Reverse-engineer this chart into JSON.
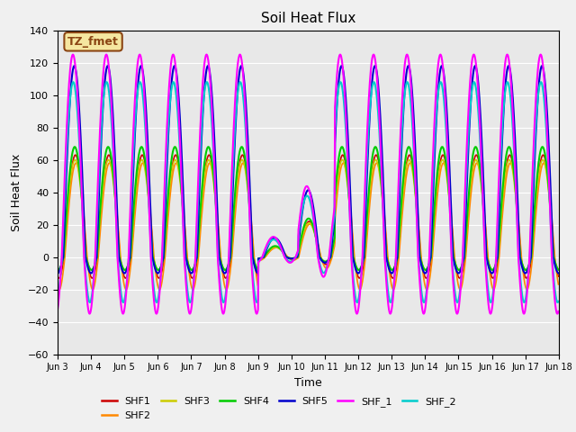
{
  "title": "Soil Heat Flux",
  "xlabel": "Time",
  "ylabel": "Soil Heat Flux",
  "ylim": [
    -60,
    140
  ],
  "xlim_days": [
    3,
    18
  ],
  "background_color": "#e8e8e8",
  "fig_background": "#f0f0f0",
  "annotation_label": "TZ_fmet",
  "annotation_bg": "#f5e6a0",
  "annotation_border": "#8b4513",
  "series": {
    "SHF1": {
      "color": "#cc0000",
      "lw": 1.2
    },
    "SHF2": {
      "color": "#ff8800",
      "lw": 1.2
    },
    "SHF3": {
      "color": "#cccc00",
      "lw": 1.2
    },
    "SHF4": {
      "color": "#00cc00",
      "lw": 1.5
    },
    "SHF5": {
      "color": "#0000cc",
      "lw": 1.5
    },
    "SHF_1": {
      "color": "#ff00ff",
      "lw": 1.5
    },
    "SHF_2": {
      "color": "#00cccc",
      "lw": 1.5
    }
  },
  "ytick_vals": [
    -60,
    -40,
    -20,
    0,
    20,
    40,
    60,
    80,
    100,
    120,
    140
  ],
  "xtick_positions": [
    3,
    4,
    5,
    6,
    7,
    8,
    9,
    10,
    11,
    12,
    13,
    14,
    15,
    16,
    17,
    18
  ],
  "xtick_labels": [
    "Jun 3",
    "Jun 4",
    "Jun 5",
    "Jun 6",
    "Jun 7",
    "Jun 8",
    "Jun 9",
    "Jun 10",
    "Jun 11",
    "Jun 12",
    "Jun 13",
    "Jun 14",
    "Jun 15",
    "Jun 16",
    "Jun 17",
    "Jun 18"
  ],
  "grid_color": "#ffffff",
  "legend_order": [
    "SHF1",
    "SHF2",
    "SHF3",
    "SHF4",
    "SHF5",
    "SHF_1",
    "SHF_2"
  ],
  "plot_order": [
    "SHF1",
    "SHF2",
    "SHF3",
    "SHF4",
    "SHF5",
    "SHF_2",
    "SHF_1"
  ]
}
